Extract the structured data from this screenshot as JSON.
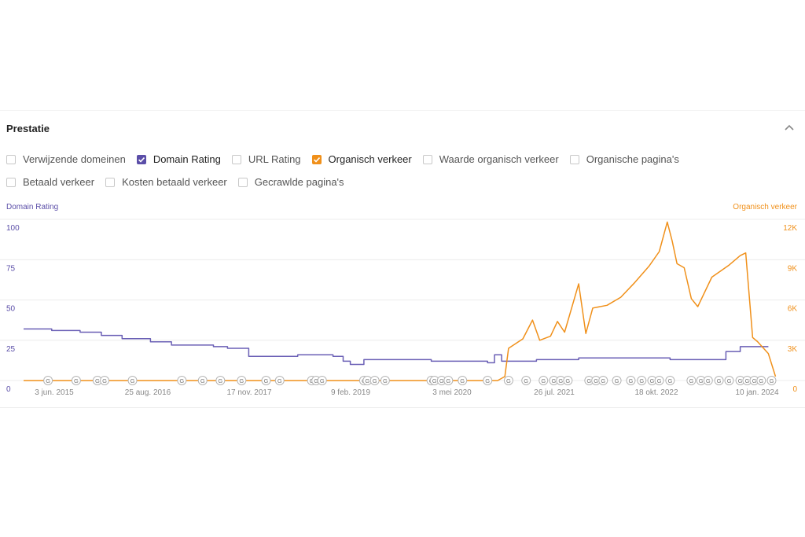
{
  "panel": {
    "title": "Prestatie"
  },
  "checkboxes": {
    "row1": [
      {
        "label": "Verwijzende domeinen",
        "checked": false
      },
      {
        "label": "Domain Rating",
        "checked": true,
        "color": "#5b4ea8"
      },
      {
        "label": "URL Rating",
        "checked": false
      },
      {
        "label": "Organisch verkeer",
        "checked": true,
        "color": "#f0901a"
      },
      {
        "label": "Waarde organisch verkeer",
        "checked": false
      },
      {
        "label": "Organische pagina's",
        "checked": false
      }
    ],
    "row2": [
      {
        "label": "Betaald verkeer",
        "checked": false
      },
      {
        "label": "Kosten betaald verkeer",
        "checked": false
      },
      {
        "label": "Gecrawlde pagina's",
        "checked": false
      }
    ]
  },
  "colors": {
    "dr": "#6a5fb5",
    "traffic": "#f0901a",
    "grid": "#ececec",
    "ticks": "#888888"
  },
  "chart_data": {
    "type": "line",
    "y_left": {
      "label": "Domain Rating",
      "ticks": [
        "100",
        "75",
        "50",
        "25",
        "0"
      ],
      "range": [
        0,
        100
      ]
    },
    "y_right": {
      "label": "Organisch verkeer",
      "ticks": [
        "12K",
        "9K",
        "6K",
        "3K",
        "0"
      ],
      "range": [
        0,
        12000
      ]
    },
    "x_ticks": [
      "3 jun. 2015",
      "25 aug. 2016",
      "17 nov. 2017",
      "9 feb. 2019",
      "3 mei 2020",
      "26 jul. 2021",
      "18 okt. 2022",
      "10 jan. 2024"
    ],
    "x_range": [
      "2015-03-01",
      "2024-03-01"
    ],
    "series": [
      {
        "name": "Domain Rating",
        "axis": "left",
        "points": [
          [
            "2015-03-01",
            32
          ],
          [
            "2015-07-01",
            31
          ],
          [
            "2015-11-01",
            30
          ],
          [
            "2016-02-01",
            28
          ],
          [
            "2016-05-01",
            26
          ],
          [
            "2016-09-01",
            24
          ],
          [
            "2016-12-01",
            22
          ],
          [
            "2017-06-01",
            21
          ],
          [
            "2017-08-01",
            20
          ],
          [
            "2017-11-01",
            15
          ],
          [
            "2018-02-01",
            15
          ],
          [
            "2018-06-01",
            16
          ],
          [
            "2018-11-01",
            15
          ],
          [
            "2018-12-15",
            12
          ],
          [
            "2019-01-15",
            10
          ],
          [
            "2019-02-15",
            10
          ],
          [
            "2019-03-15",
            13
          ],
          [
            "2019-09-01",
            13
          ],
          [
            "2020-01-01",
            12
          ],
          [
            "2020-06-01",
            12
          ],
          [
            "2020-09-01",
            11
          ],
          [
            "2020-10-01",
            16
          ],
          [
            "2020-11-01",
            12
          ],
          [
            "2021-04-01",
            13
          ],
          [
            "2021-10-01",
            14
          ],
          [
            "2022-06-01",
            14
          ],
          [
            "2022-11-01",
            13
          ],
          [
            "2023-05-01",
            13
          ],
          [
            "2023-07-01",
            18
          ],
          [
            "2023-09-01",
            21
          ],
          [
            "2024-01-01",
            21
          ]
        ]
      },
      {
        "name": "Organisch verkeer",
        "axis": "right",
        "points": [
          [
            "2015-03-01",
            0
          ],
          [
            "2020-10-15",
            0
          ],
          [
            "2020-11-15",
            300
          ],
          [
            "2020-12-01",
            2400
          ],
          [
            "2021-02-01",
            3100
          ],
          [
            "2021-03-15",
            4500
          ],
          [
            "2021-04-15",
            3000
          ],
          [
            "2021-06-01",
            3300
          ],
          [
            "2021-07-01",
            4400
          ],
          [
            "2021-08-01",
            3600
          ],
          [
            "2021-10-01",
            7200
          ],
          [
            "2021-11-01",
            3500
          ],
          [
            "2021-12-01",
            5400
          ],
          [
            "2022-02-01",
            5600
          ],
          [
            "2022-04-01",
            6200
          ],
          [
            "2022-06-01",
            7300
          ],
          [
            "2022-08-01",
            8500
          ],
          [
            "2022-09-15",
            9600
          ],
          [
            "2022-10-20",
            11800
          ],
          [
            "2022-11-10",
            10400
          ],
          [
            "2022-12-01",
            8700
          ],
          [
            "2023-01-01",
            8400
          ],
          [
            "2023-02-01",
            6100
          ],
          [
            "2023-03-01",
            5500
          ],
          [
            "2023-05-01",
            7700
          ],
          [
            "2023-07-15",
            8600
          ],
          [
            "2023-09-01",
            9300
          ],
          [
            "2023-09-25",
            9500
          ],
          [
            "2023-10-25",
            3200
          ],
          [
            "2023-11-15",
            2900
          ],
          [
            "2024-01-01",
            2000
          ],
          [
            "2024-02-01",
            300
          ]
        ]
      }
    ],
    "google_update_markers": {
      "label": "G",
      "dates": [
        "2015-06-15",
        "2015-10-15",
        "2016-01-15",
        "2016-02-15",
        "2016-06-15",
        "2017-01-15",
        "2017-04-15",
        "2017-07-01",
        "2017-10-01",
        "2018-01-15",
        "2018-03-15",
        "2018-08-01",
        "2018-08-20",
        "2018-09-15",
        "2019-03-15",
        "2019-03-30",
        "2019-05-01",
        "2019-06-15",
        "2020-01-01",
        "2020-01-15",
        "2020-02-15",
        "2020-03-15",
        "2020-05-15",
        "2020-09-01",
        "2020-12-01",
        "2021-02-15",
        "2021-05-01",
        "2021-06-15",
        "2021-07-15",
        "2021-08-15",
        "2021-11-15",
        "2021-12-15",
        "2022-01-15",
        "2022-03-15",
        "2022-05-15",
        "2022-07-01",
        "2022-08-15",
        "2022-09-15",
        "2022-11-01",
        "2023-02-01",
        "2023-03-15",
        "2023-04-15",
        "2023-06-01",
        "2023-07-15",
        "2023-09-01",
        "2023-10-01",
        "2023-11-01",
        "2023-12-01",
        "2024-01-15"
      ]
    }
  }
}
